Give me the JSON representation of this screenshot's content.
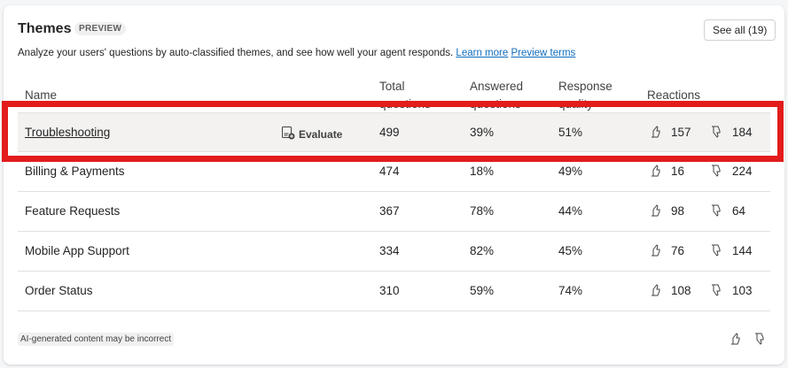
{
  "header": {
    "title": "Themes",
    "badge": "PREVIEW",
    "see_all": "See all (19)",
    "description": "Analyze your users' questions by auto-classified themes, and see how well your agent responds.",
    "learn_more": "Learn more",
    "preview_terms": "Preview terms"
  },
  "table": {
    "columns": {
      "name": "Name",
      "total": [
        "Total",
        "questions"
      ],
      "answered": [
        "Answered",
        "questions"
      ],
      "quality": [
        "Response",
        "quality"
      ],
      "reactions": "Reactions"
    },
    "evaluate_label": "Evaluate",
    "rows": [
      {
        "name": "Troubleshooting",
        "total": "499",
        "answered": "39%",
        "quality": "51%",
        "up": "157",
        "down": "184"
      },
      {
        "name": "Billing & Payments",
        "total": "474",
        "answered": "18%",
        "quality": "49%",
        "up": "16",
        "down": "224"
      },
      {
        "name": "Feature Requests",
        "total": "367",
        "answered": "78%",
        "quality": "44%",
        "up": "98",
        "down": "64"
      },
      {
        "name": "Mobile App Support",
        "total": "334",
        "answered": "82%",
        "quality": "45%",
        "up": "76",
        "down": "144"
      },
      {
        "name": "Order Status",
        "total": "310",
        "answered": "59%",
        "quality": "74%",
        "up": "108",
        "down": "103"
      }
    ]
  },
  "footer": {
    "disclaimer": "AI-generated content may be incorrect"
  },
  "colors": {
    "highlight": "#e31c1c",
    "link": "#0f6cbd",
    "selected_row": "#f3f2f1"
  }
}
